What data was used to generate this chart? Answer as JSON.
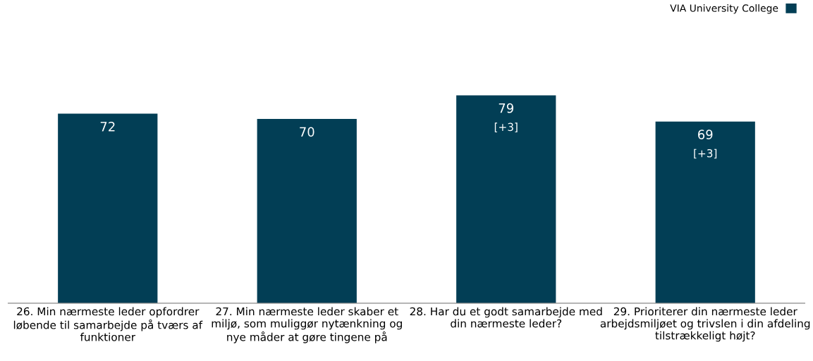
{
  "chart_data": {
    "type": "bar",
    "categories": [
      "26. Min nærmeste leder opfordrer\nløbende til samarbejde på tværs af\nfunktioner",
      "27. Min nærmeste leder skaber et\nmiljø, som muliggør nytænkning og\nnye måder at gøre tingene på",
      "28. Har du et godt samarbejde med\ndin nærmeste leder?",
      "29. Prioriterer din nærmeste leder\narbejdsmiljøet og trivslen i din afdeling\ntilstrækkeligt højt?"
    ],
    "series": [
      {
        "name": "VIA University College",
        "color": "#023e55",
        "values": [
          72,
          70,
          79,
          69
        ]
      }
    ],
    "data_labels": true,
    "annotations": [
      {
        "text": "[+3]",
        "x": "28. Har du et godt samarbejde med\ndin nærmeste leder?",
        "y": 79
      },
      {
        "text": "[+3]",
        "x": "29. Prioriterer din nærmeste leder\narbejdsmiljøet og trivslen i din afdeling\ntilstrækkeligt højt?",
        "y": 69
      }
    ],
    "tick_labels": "x",
    "legend": "top right",
    "grid": false
  }
}
